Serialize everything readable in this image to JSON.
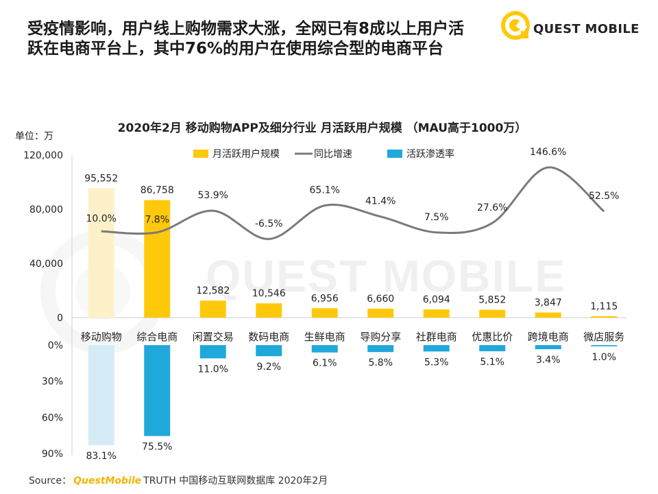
{
  "headline": {
    "line1": "受疫情影响，用户线上购物需求大涨，全网已有8成以上用户活",
    "line2": "跃在电商平台上，其中76%的用户在使用综合型的电商平台"
  },
  "brand": {
    "name": "QUEST MOBILE",
    "logo_icon": "chat-bubble-icon",
    "watermark": "QUEST MOBILE"
  },
  "colors": {
    "bar": "#ffc90b",
    "bar_first": "#fdf1c9",
    "pen": "#21a8db",
    "pen_first": "#d5ebf6",
    "growth": "#7a7a7a",
    "text": "#222222",
    "accent": "#f0b400"
  },
  "chart_data": {
    "type": "bar",
    "title": "2020年2月 移动购物APP及细分行业 月活跃用户规模 （MAU高于1000万）",
    "unit": "单位：万",
    "legend": [
      "月活跃用户规模",
      "同比增速",
      "活跃渗透率"
    ],
    "categories": [
      "移动购物",
      "综合电商",
      "闲置交易",
      "数码电商",
      "生鲜电商",
      "导购分享",
      "社群电商",
      "优惠比价",
      "跨境电商",
      "微店服务"
    ],
    "series": [
      {
        "name": "月活跃用户规模",
        "values": [
          95552,
          86758,
          12582,
          10546,
          6956,
          6660,
          6094,
          5852,
          3847,
          1115
        ],
        "labels": [
          "95,552",
          "86,758",
          "12,582",
          "10,546",
          "6,956",
          "6,660",
          "6,094",
          "5,852",
          "3,847",
          "1,115"
        ]
      },
      {
        "name": "同比增速",
        "values": [
          10.0,
          7.8,
          53.9,
          -6.5,
          65.1,
          41.4,
          7.5,
          27.6,
          146.6,
          52.5
        ],
        "labels": [
          "10.0%",
          "7.8%",
          "53.9%",
          "-6.5%",
          "65.1%",
          "41.4%",
          "7.5%",
          "27.6%",
          "146.6%",
          "52.5%"
        ]
      },
      {
        "name": "活跃渗透率",
        "values": [
          83.1,
          75.5,
          11.0,
          9.2,
          6.1,
          5.8,
          5.3,
          5.1,
          3.4,
          1.0
        ],
        "labels": [
          "83.1%",
          "75.5%",
          "11.0%",
          "9.2%",
          "6.1%",
          "5.8%",
          "5.3%",
          "5.1%",
          "3.4%",
          "1.0%"
        ]
      }
    ],
    "ylim": [
      0,
      120000
    ],
    "yticks": [
      "0",
      "40,000",
      "80,000",
      "120,000"
    ],
    "ylim_lower": [
      0,
      90
    ],
    "yticks_lower": [
      "0%",
      "30%",
      "60%",
      "90%"
    ],
    "growth_range": [
      -50,
      170
    ]
  },
  "footer": {
    "prefix": "Source：",
    "brand": "QuestMobile",
    "suffix": "TRUTH 中国移动互联网数据库 2020年2月"
  }
}
